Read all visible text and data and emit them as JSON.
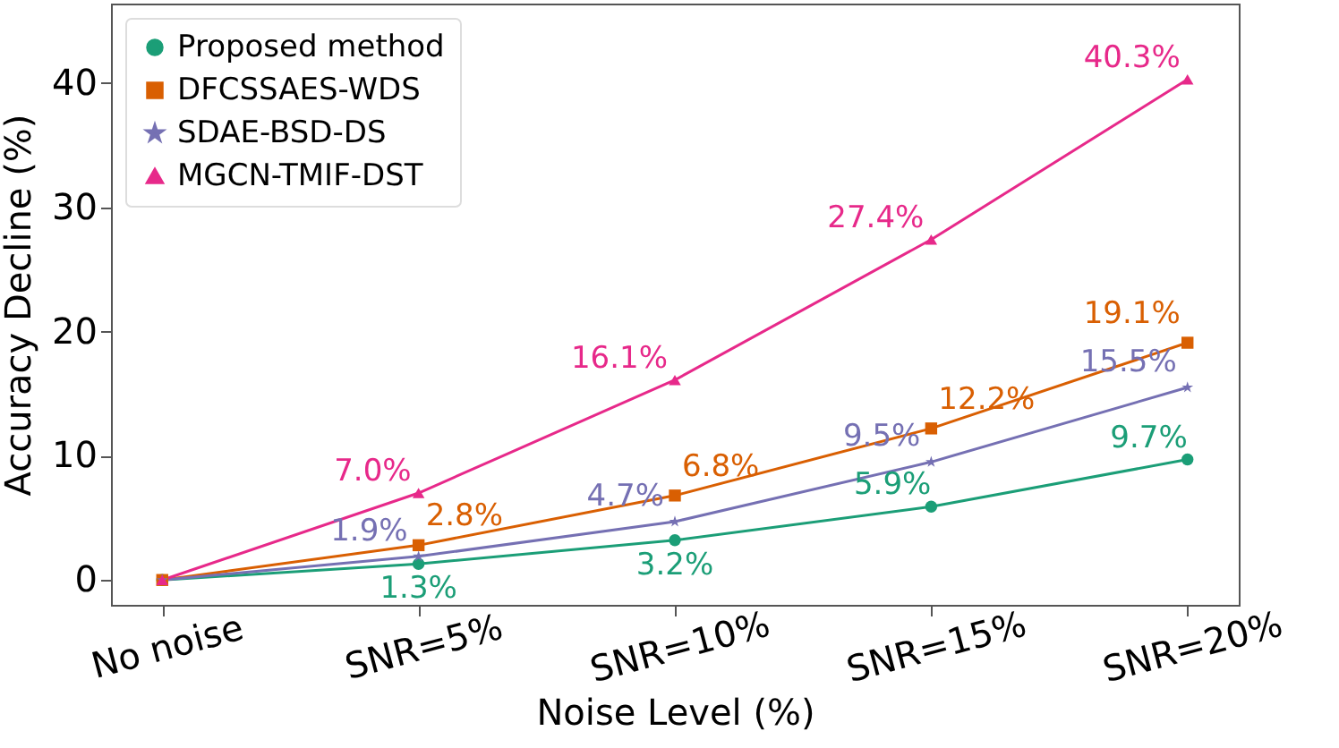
{
  "chart_data": {
    "type": "line",
    "xlabel": "Noise Level (%)",
    "ylabel": "Accuracy Decline (%)",
    "categories": [
      "No noise",
      "SNR=5%",
      "SNR=10%",
      "SNR=15%",
      "SNR=20%"
    ],
    "ylim": [
      -2,
      46.4
    ],
    "yticks": [
      0,
      10,
      20,
      30,
      40
    ],
    "legend": "top left",
    "line_style": "solid",
    "series": [
      {
        "name": "Proposed method",
        "color": "#1b9e77",
        "marker": "circle",
        "values": [
          0,
          1.3,
          3.2,
          5.9,
          9.7
        ],
        "value_labels": [
          null,
          "1.3%",
          "3.2%",
          "5.9%",
          "9.7%"
        ]
      },
      {
        "name": "DFCSSAES-WDS",
        "color": "#d95f02",
        "marker": "square",
        "values": [
          0,
          2.8,
          6.8,
          12.2,
          19.1
        ],
        "value_labels": [
          null,
          "2.8%",
          "6.8%",
          "12.2%",
          "19.1%"
        ]
      },
      {
        "name": "SDAE-BSD-DS",
        "color": "#7570b3",
        "marker": "star",
        "values": [
          0,
          1.9,
          4.7,
          9.5,
          15.5
        ],
        "value_labels": [
          null,
          "1.9%",
          "4.7%",
          "9.5%",
          "15.5%"
        ]
      },
      {
        "name": "MGCN-TMIF-DST",
        "color": "#e7298a",
        "marker": "triangle",
        "values": [
          0,
          7.0,
          16.1,
          27.4,
          40.3
        ],
        "value_labels": [
          null,
          "7.0%",
          "16.1%",
          "27.4%",
          "40.3%"
        ]
      }
    ]
  }
}
